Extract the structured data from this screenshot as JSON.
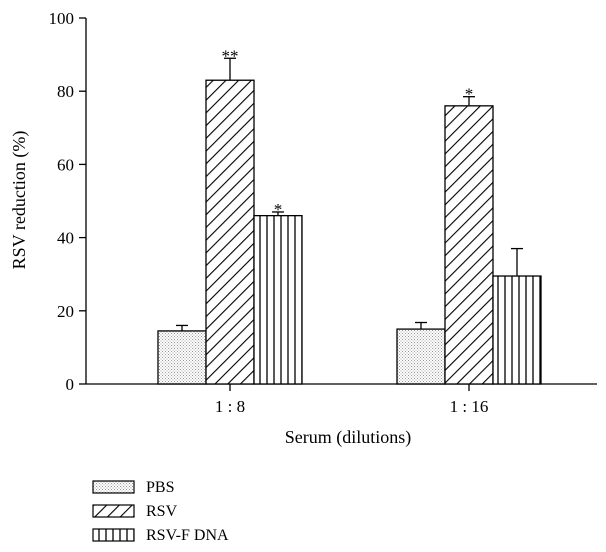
{
  "chart_data": {
    "type": "bar",
    "title": "",
    "xlabel": "Serum (dilutions)",
    "ylabel": "RSV reduction (%)",
    "ylim": [
      0,
      100
    ],
    "yticks": [
      "0",
      "20",
      "40",
      "60",
      "80",
      "100"
    ],
    "categories": [
      "1 : 8",
      "1 : 16"
    ],
    "legend_position": "bottom-left",
    "series": [
      {
        "name": "PBS",
        "pattern": "dotted",
        "values": [
          14.5,
          15.0
        ],
        "errors": [
          1.5,
          1.8
        ],
        "significance": [
          "",
          ""
        ]
      },
      {
        "name": "RSV",
        "pattern": "diagonal-hatch",
        "values": [
          83,
          76
        ],
        "errors": [
          6,
          2.5
        ],
        "significance": [
          "**",
          "*"
        ]
      },
      {
        "name": "RSV-F DNA",
        "pattern": "vertical-lines",
        "values": [
          46,
          29.5
        ],
        "errors": [
          1,
          7.5
        ],
        "significance": [
          "*",
          ""
        ]
      }
    ]
  }
}
